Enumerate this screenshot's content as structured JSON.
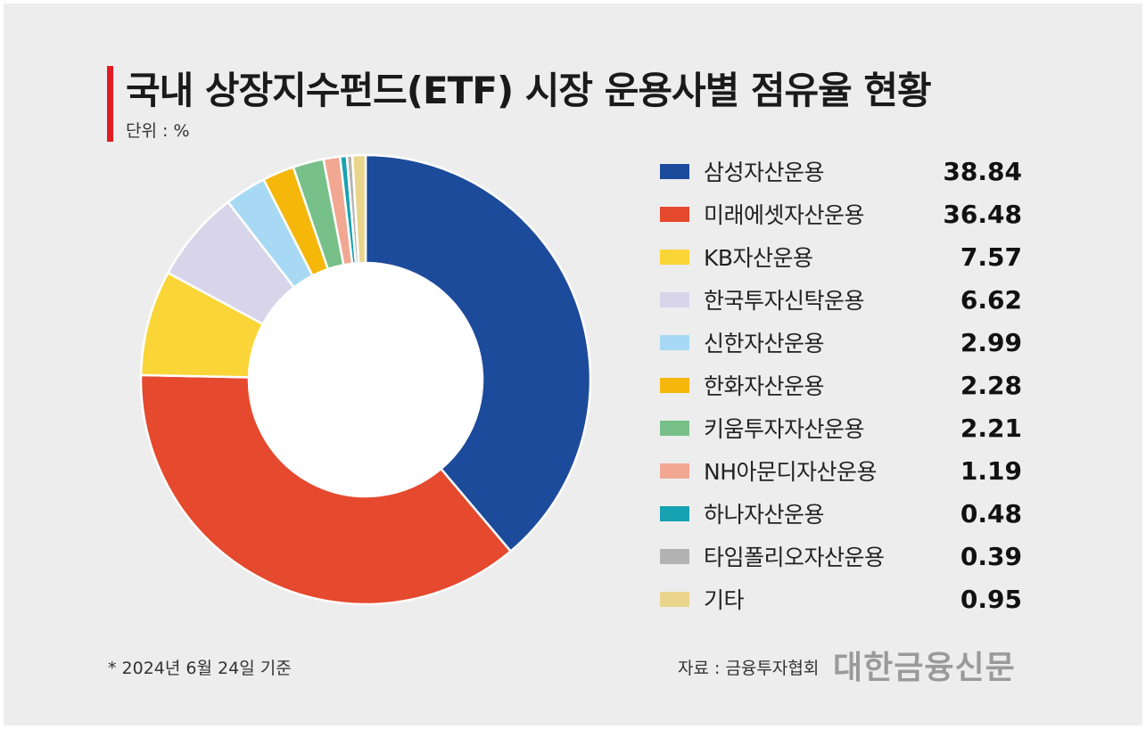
{
  "header": {
    "title": "국내 상장지수펀드(ETF) 시장 운용사별 점유율 현황",
    "unit": "단위 : %"
  },
  "footer": {
    "note": "* 2024년 6월 24일 기준",
    "source": "자료 : 금융투자협회",
    "logo": "대한금융신문"
  },
  "chart_data": {
    "type": "pie",
    "title": "국내 상장지수펀드(ETF) 시장 운용사별 점유율 현황",
    "unit": "%",
    "legend_position": "right",
    "categories": [
      "삼성자산운용",
      "미래에셋자산운용",
      "KB자산운용",
      "한국투자신탁운용",
      "신한자산운용",
      "한화자산운용",
      "키움투자자산운용",
      "NH아문디자산운용",
      "하나자산운용",
      "타임폴리오자산운용",
      "기타"
    ],
    "values": [
      38.84,
      36.48,
      7.57,
      6.62,
      2.99,
      2.28,
      2.21,
      1.19,
      0.48,
      0.39,
      0.95
    ],
    "value_labels": [
      "38.84",
      "36.48",
      "7.57",
      "6.62",
      "2.99",
      "2.28",
      "2.21",
      "1.19",
      "0.48",
      "0.39",
      "0.95"
    ],
    "colors": [
      "#1d4b9c",
      "#e5492e",
      "#fad537",
      "#d8d5ea",
      "#a7d9f4",
      "#f5b70a",
      "#78c08a",
      "#f1a792",
      "#16a2b1",
      "#b3b3b3",
      "#ead58c"
    ]
  }
}
